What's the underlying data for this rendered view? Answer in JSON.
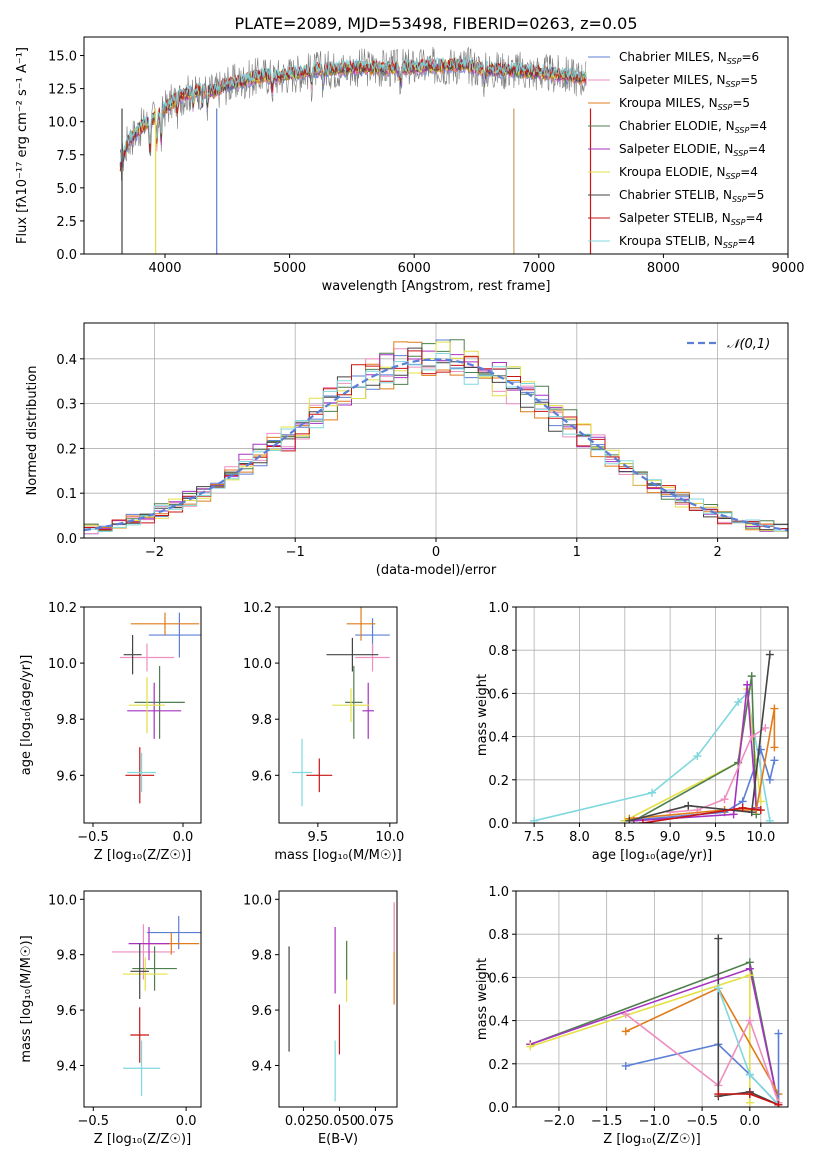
{
  "figure": {
    "title": "PLATE=2089, MJD=53498, FIBERID=0263, z=0.05"
  },
  "chart_data": [
    {
      "type": "line",
      "title": "PLATE=2089, MJD=53498, FIBERID=0263, z=0.05",
      "xlabel": "wavelength [Angstrom, rest frame]",
      "ylabel": "Flux [f_λ 10^-17 erg cm^-2 s^-1 A^-1]",
      "xlim": [
        3350,
        9000
      ],
      "ylim": [
        0,
        16.4
      ],
      "xticks": [
        4000,
        5000,
        6000,
        7000,
        8000,
        9000
      ],
      "yticks": [
        0,
        2.5,
        5.0,
        7.5,
        10.0,
        12.5,
        15.0
      ],
      "grid": false,
      "legend": "right",
      "continuum": {
        "x": [
          3640,
          3700,
          3800,
          3900,
          4000,
          4100,
          4200,
          4300,
          4400,
          4500,
          4600,
          4700,
          4800,
          4900,
          5000,
          5200,
          5400,
          5600,
          5800,
          6000,
          6200,
          6400,
          6600,
          6800,
          7000,
          7200,
          7380
        ],
        "y": [
          6.5,
          8.5,
          9.5,
          10.2,
          11.0,
          11.8,
          12.2,
          12.4,
          12.3,
          12.8,
          13.0,
          13.3,
          13.5,
          13.4,
          13.6,
          13.9,
          14.0,
          14.1,
          14.0,
          14.1,
          14.2,
          14.3,
          13.9,
          13.9,
          13.7,
          13.5,
          13.3
        ]
      },
      "series": [
        {
          "name": "Chabrier MILES, N_SSP=6",
          "color": "#5b7fd6"
        },
        {
          "name": "Salpeter MILES, N_SSP=5",
          "color": "#ee8fc0"
        },
        {
          "name": "Kroupa MILES, N_SSP=5",
          "color": "#e07b1a"
        },
        {
          "name": "Chabrier ELODIE, N_SSP=4",
          "color": "#4f7f4f"
        },
        {
          "name": "Salpeter ELODIE, N_SSP=4",
          "color": "#a633c0"
        },
        {
          "name": "Kroupa ELODIE, N_SSP=4",
          "color": "#e4e046"
        },
        {
          "name": "Chabrier STELIB, N_SSP=5",
          "color": "#444444"
        },
        {
          "name": "Salpeter STELIB, N_SSP=4",
          "color": "#c81414"
        },
        {
          "name": "Kroupa STELIB, N_SSP=4",
          "color": "#7fd8de"
        }
      ]
    },
    {
      "type": "histogram",
      "xlabel": "(data-model)/error",
      "ylabel": "Normed distribution",
      "xlim": [
        -2.5,
        2.5
      ],
      "ylim": [
        0,
        0.48
      ],
      "xticks": [
        -2,
        -1,
        0,
        1,
        2
      ],
      "yticks": [
        0.0,
        0.1,
        0.2,
        0.3,
        0.4
      ],
      "grid": true,
      "legend": "top-right",
      "reference": {
        "name": "𝒩(0,1)",
        "mu": 0,
        "sigma": 1,
        "color": "#5b7fd6"
      },
      "bin_width": 0.1
    },
    {
      "type": "scatter",
      "xlabel": "Z [log10(Z/Z⊙)]",
      "ylabel": "age [log10(age/yr)]",
      "xlim": [
        -0.55,
        0.1
      ],
      "ylim": [
        9.43,
        10.2
      ],
      "xticks": [
        -0.5,
        0.0
      ],
      "yticks": [
        9.6,
        9.8,
        10.0,
        10.2
      ],
      "points": [
        {
          "x": -0.02,
          "y": 10.1,
          "xerr": 0.17,
          "yerr": 0.08,
          "color": "#5b7fd6"
        },
        {
          "x": -0.2,
          "y": 10.02,
          "xerr": 0.15,
          "yerr": 0.05,
          "color": "#ee8fc0"
        },
        {
          "x": -0.1,
          "y": 10.14,
          "xerr": 0.19,
          "yerr": 0.04,
          "color": "#e07b1a"
        },
        {
          "x": -0.13,
          "y": 9.86,
          "xerr": 0.14,
          "yerr": 0.13,
          "color": "#4f7f4f"
        },
        {
          "x": -0.16,
          "y": 9.83,
          "xerr": 0.15,
          "yerr": 0.1,
          "color": "#a633c0"
        },
        {
          "x": -0.2,
          "y": 9.85,
          "xerr": 0.1,
          "yerr": 0.1,
          "color": "#e4e046"
        },
        {
          "x": -0.28,
          "y": 10.03,
          "xerr": 0.05,
          "yerr": 0.07,
          "color": "#444444"
        },
        {
          "x": -0.24,
          "y": 9.6,
          "xerr": 0.08,
          "yerr": 0.1,
          "color": "#c81414"
        },
        {
          "x": -0.23,
          "y": 9.61,
          "xerr": 0.08,
          "yerr": 0.07,
          "color": "#7fd8de"
        }
      ]
    },
    {
      "type": "scatter",
      "xlabel": "mass [log10(M/M⊙)]",
      "ylabel": "",
      "xlim": [
        9.23,
        10.05
      ],
      "ylim": [
        9.43,
        10.2
      ],
      "xticks": [
        9.5,
        10.0
      ],
      "yticks": [
        9.6,
        9.8,
        10.0,
        10.2
      ],
      "points": [
        {
          "x": 9.88,
          "y": 10.1,
          "xerr": 0.12,
          "yerr": 0.06,
          "color": "#5b7fd6"
        },
        {
          "x": 9.88,
          "y": 10.02,
          "xerr": 0.12,
          "yerr": 0.05,
          "color": "#ee8fc0"
        },
        {
          "x": 9.8,
          "y": 10.14,
          "xerr": 0.1,
          "yerr": 0.06,
          "color": "#e07b1a"
        },
        {
          "x": 9.75,
          "y": 9.86,
          "xerr": 0.06,
          "yerr": 0.13,
          "color": "#4f7f4f"
        },
        {
          "x": 9.85,
          "y": 9.83,
          "xerr": 0.04,
          "yerr": 0.1,
          "color": "#a633c0"
        },
        {
          "x": 9.73,
          "y": 9.85,
          "xerr": 0.13,
          "yerr": 0.06,
          "color": "#e4e046"
        },
        {
          "x": 9.74,
          "y": 10.03,
          "xerr": 0.18,
          "yerr": 0.06,
          "color": "#444444"
        },
        {
          "x": 9.51,
          "y": 9.6,
          "xerr": 0.09,
          "yerr": 0.06,
          "color": "#c81414"
        },
        {
          "x": 9.39,
          "y": 9.61,
          "xerr": 0.07,
          "yerr": 0.12,
          "color": "#7fd8de"
        }
      ]
    },
    {
      "type": "line",
      "xlabel": "age [log10(age/yr)]",
      "ylabel": "mass weight",
      "xlim": [
        7.3,
        10.3
      ],
      "ylim": [
        0,
        1.0
      ],
      "xticks": [
        7.5,
        8.0,
        8.5,
        9.0,
        9.5,
        10.0
      ],
      "yticks": [
        0.0,
        0.2,
        0.4,
        0.6,
        0.8,
        1.0
      ],
      "grid": true,
      "series": [
        {
          "color": "#7fd8de",
          "x": [
            7.5,
            8.8,
            9.3,
            9.75,
            9.85,
            10.1
          ],
          "y": [
            0.01,
            0.14,
            0.31,
            0.56,
            0.6,
            0.01
          ]
        },
        {
          "color": "#5b7fd6",
          "x": [
            8.5,
            9.6,
            9.8,
            10.0,
            10.1,
            10.15
          ],
          "y": [
            0.01,
            0.05,
            0.1,
            0.34,
            0.2,
            0.29
          ]
        },
        {
          "color": "#e4e046",
          "x": [
            8.5,
            9.75,
            9.85,
            10.0
          ],
          "y": [
            0.01,
            0.28,
            0.62,
            0.1
          ]
        },
        {
          "color": "#4f7f4f",
          "x": [
            8.6,
            9.75,
            9.9,
            9.95
          ],
          "y": [
            0.01,
            0.28,
            0.68,
            0.04
          ]
        },
        {
          "color": "#a633c0",
          "x": [
            8.6,
            9.7,
            9.85,
            9.95
          ],
          "y": [
            0.01,
            0.04,
            0.64,
            0.07
          ]
        },
        {
          "color": "#ee8fc0",
          "x": [
            9.0,
            9.3,
            9.6,
            9.9,
            10.05
          ],
          "y": [
            0.05,
            0.06,
            0.11,
            0.4,
            0.44
          ]
        },
        {
          "color": "#e07b1a",
          "x": [
            8.55,
            9.6,
            9.95,
            10.15,
            10.15
          ],
          "y": [
            0.02,
            0.06,
            0.06,
            0.53,
            0.35
          ]
        },
        {
          "color": "#444444",
          "x": [
            8.55,
            9.2,
            9.9,
            10.1
          ],
          "y": [
            0.01,
            0.08,
            0.05,
            0.78
          ]
        },
        {
          "color": "#c81414",
          "x": [
            8.7,
            9.8,
            10.0
          ],
          "y": [
            0.0,
            0.07,
            0.06
          ]
        }
      ]
    },
    {
      "type": "scatter",
      "xlabel": "Z [log10(Z/Z⊙)]",
      "ylabel": "mass [log10(M/M⊙)]",
      "xlim": [
        -0.55,
        0.08
      ],
      "ylim": [
        9.25,
        10.03
      ],
      "xticks": [
        -0.5,
        0.0
      ],
      "yticks": [
        9.4,
        9.6,
        9.8,
        10.0
      ],
      "points": [
        {
          "x": -0.04,
          "y": 9.88,
          "xerr": 0.17,
          "yerr": 0.06,
          "color": "#5b7fd6"
        },
        {
          "x": -0.23,
          "y": 9.81,
          "xerr": 0.17,
          "yerr": 0.1,
          "color": "#ee8fc0"
        },
        {
          "x": -0.08,
          "y": 9.84,
          "xerr": 0.15,
          "yerr": 0.04,
          "color": "#e07b1a"
        },
        {
          "x": -0.17,
          "y": 9.75,
          "xerr": 0.12,
          "yerr": 0.08,
          "color": "#4f7f4f"
        },
        {
          "x": -0.2,
          "y": 9.84,
          "xerr": 0.11,
          "yerr": 0.06,
          "color": "#a633c0"
        },
        {
          "x": -0.22,
          "y": 9.73,
          "xerr": 0.12,
          "yerr": 0.06,
          "color": "#e4e046"
        },
        {
          "x": -0.25,
          "y": 9.74,
          "xerr": 0.05,
          "yerr": 0.1,
          "color": "#444444"
        },
        {
          "x": -0.25,
          "y": 9.51,
          "xerr": 0.05,
          "yerr": 0.1,
          "color": "#c81414"
        },
        {
          "x": -0.24,
          "y": 9.39,
          "xerr": 0.1,
          "yerr": 0.1,
          "color": "#7fd8de"
        }
      ]
    },
    {
      "type": "scatter",
      "xlabel": "E(B-V)",
      "ylabel": "",
      "xlim": [
        0.008,
        0.09
      ],
      "ylim": [
        9.25,
        10.03
      ],
      "xticks": [
        0.025,
        0.05,
        0.075
      ],
      "xtick_labels": [
        "0.025",
        "0.050",
        "0.075"
      ],
      "yticks": [
        9.4,
        9.6,
        9.8,
        10.0
      ],
      "points": [
        {
          "x": 0.015,
          "y": 9.64,
          "yerr": 0.19,
          "color": "#444444"
        },
        {
          "x": 0.047,
          "y": 9.78,
          "yerr": 0.12,
          "color": "#a633c0"
        },
        {
          "x": 0.047,
          "y": 9.38,
          "yerr": 0.11,
          "color": "#7fd8de"
        },
        {
          "x": 0.05,
          "y": 9.53,
          "yerr": 0.09,
          "color": "#c81414"
        },
        {
          "x": 0.055,
          "y": 9.74,
          "yerr": 0.11,
          "color": "#e4e046"
        },
        {
          "x": 0.055,
          "y": 9.78,
          "yerr": 0.07,
          "color": "#4f7f4f"
        },
        {
          "x": 0.088,
          "y": 9.8,
          "yerr": 0.18,
          "color": "#e07b1a"
        },
        {
          "x": 0.088,
          "y": 9.9,
          "yerr": 0.09,
          "color": "#ee8fc0"
        }
      ]
    },
    {
      "type": "line",
      "xlabel": "Z [log10(Z/Z⊙)]",
      "ylabel": "mass weight",
      "xlim": [
        -2.45,
        0.4
      ],
      "ylim": [
        0,
        1.0
      ],
      "xticks": [
        -2.0,
        -1.5,
        -1.0,
        -0.5,
        0.0
      ],
      "yticks": [
        0.0,
        0.2,
        0.4,
        0.6,
        0.8,
        1.0
      ],
      "grid": true,
      "series": [
        {
          "color": "#4f7f4f",
          "x": [
            -2.3,
            0.0,
            0.3
          ],
          "y": [
            0.29,
            0.67,
            0.01
          ]
        },
        {
          "color": "#a633c0",
          "x": [
            -2.3,
            0.0,
            0.3
          ],
          "y": [
            0.29,
            0.64,
            0.01
          ]
        },
        {
          "color": "#e4e046",
          "x": [
            -2.3,
            0.0,
            0.0
          ],
          "y": [
            0.28,
            0.61,
            0.02
          ]
        },
        {
          "color": "#e07b1a",
          "x": [
            -1.3,
            -0.33,
            0.3,
            0.3
          ],
          "y": [
            0.35,
            0.55,
            0.06,
            0.02
          ]
        },
        {
          "color": "#5b7fd6",
          "x": [
            -1.3,
            -0.33,
            0.0,
            0.3,
            0.3
          ],
          "y": [
            0.19,
            0.29,
            0.15,
            0.01,
            0.34
          ]
        },
        {
          "color": "#ee8fc0",
          "x": [
            -1.3,
            -0.33,
            0.0,
            0.3
          ],
          "y": [
            0.43,
            0.1,
            0.4,
            0.02
          ]
        },
        {
          "color": "#444444",
          "x": [
            -0.33,
            -0.33,
            0.0,
            0.3
          ],
          "y": [
            0.78,
            0.05,
            0.07,
            0.01
          ]
        },
        {
          "color": "#7fd8de",
          "x": [
            -0.33,
            0.0,
            0.3
          ],
          "y": [
            0.55,
            0.15,
            0.01
          ]
        },
        {
          "color": "#c81414",
          "x": [
            -0.33,
            0.0,
            0.3
          ],
          "y": [
            0.06,
            0.06,
            0.01
          ]
        }
      ]
    }
  ]
}
